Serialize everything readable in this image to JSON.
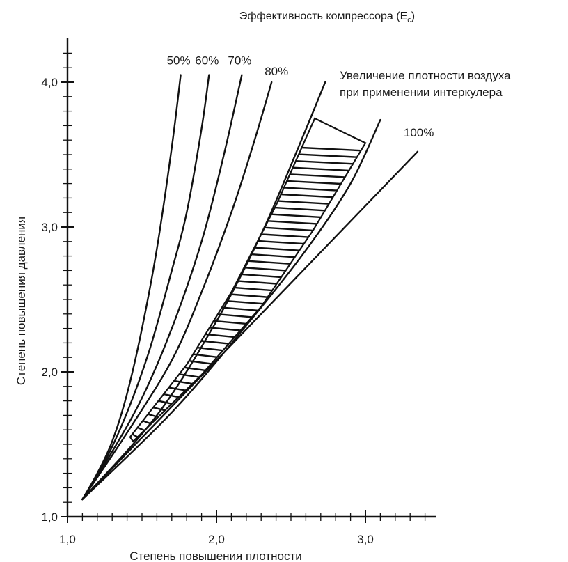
{
  "chart_data": {
    "type": "line",
    "title": "Эффективность компрессора (E",
    "title_sub": "c",
    "title_end": ")",
    "xlabel": "Степень повышения плотности",
    "ylabel": "Степень повышения давления",
    "xlim": [
      1.0,
      3.5
    ],
    "ylim": [
      1.0,
      4.3
    ],
    "x_ticks": [
      "1,0",
      "2,0",
      "3,0"
    ],
    "y_ticks": [
      "1,0",
      "2,0",
      "3,0",
      "4,0"
    ],
    "grid": false,
    "series": [
      {
        "name": "50%",
        "x": [
          1.1,
          1.2,
          1.3,
          1.4,
          1.5,
          1.6,
          1.7,
          1.76
        ],
        "y": [
          1.12,
          1.3,
          1.52,
          1.85,
          2.3,
          2.85,
          3.55,
          4.05
        ]
      },
      {
        "name": "60%",
        "x": [
          1.1,
          1.25,
          1.4,
          1.55,
          1.7,
          1.8,
          1.9,
          1.95
        ],
        "y": [
          1.12,
          1.38,
          1.72,
          2.15,
          2.7,
          3.1,
          3.68,
          4.05
        ]
      },
      {
        "name": "70%",
        "x": [
          1.1,
          1.3,
          1.5,
          1.7,
          1.9,
          2.05,
          2.17
        ],
        "y": [
          1.12,
          1.45,
          1.82,
          2.3,
          2.9,
          3.5,
          4.05
        ]
      },
      {
        "name": "80%",
        "x": [
          1.1,
          1.4,
          1.7,
          1.9,
          2.1,
          2.25,
          2.37
        ],
        "y": [
          1.12,
          1.58,
          2.08,
          2.55,
          3.1,
          3.58,
          4.0
        ]
      },
      {
        "name": "",
        "x": [
          1.1,
          1.6,
          2.0,
          2.3,
          2.55,
          2.73
        ],
        "y": [
          1.12,
          1.7,
          2.35,
          2.95,
          3.55,
          4.0
        ]
      },
      {
        "name": "",
        "x": [
          1.1,
          1.7,
          2.2,
          2.6,
          2.9,
          3.1
        ],
        "y": [
          1.12,
          1.72,
          2.32,
          2.84,
          3.3,
          3.74
        ]
      },
      {
        "name": "100%",
        "x": [
          1.1,
          3.35
        ],
        "y": [
          1.12,
          3.52
        ]
      }
    ],
    "band": {
      "upper_x": [
        1.42,
        1.8,
        2.1,
        2.4,
        2.66
      ],
      "upper_y": [
        1.55,
        2.05,
        2.55,
        3.15,
        3.75
      ],
      "lower_x": [
        1.44,
        1.9,
        2.3,
        2.65,
        3.0
      ],
      "lower_y": [
        1.52,
        1.98,
        2.45,
        2.98,
        3.58
      ]
    },
    "annotation": [
      "Увеличение плотности воздуха",
      "при применении интеркулера"
    ]
  }
}
